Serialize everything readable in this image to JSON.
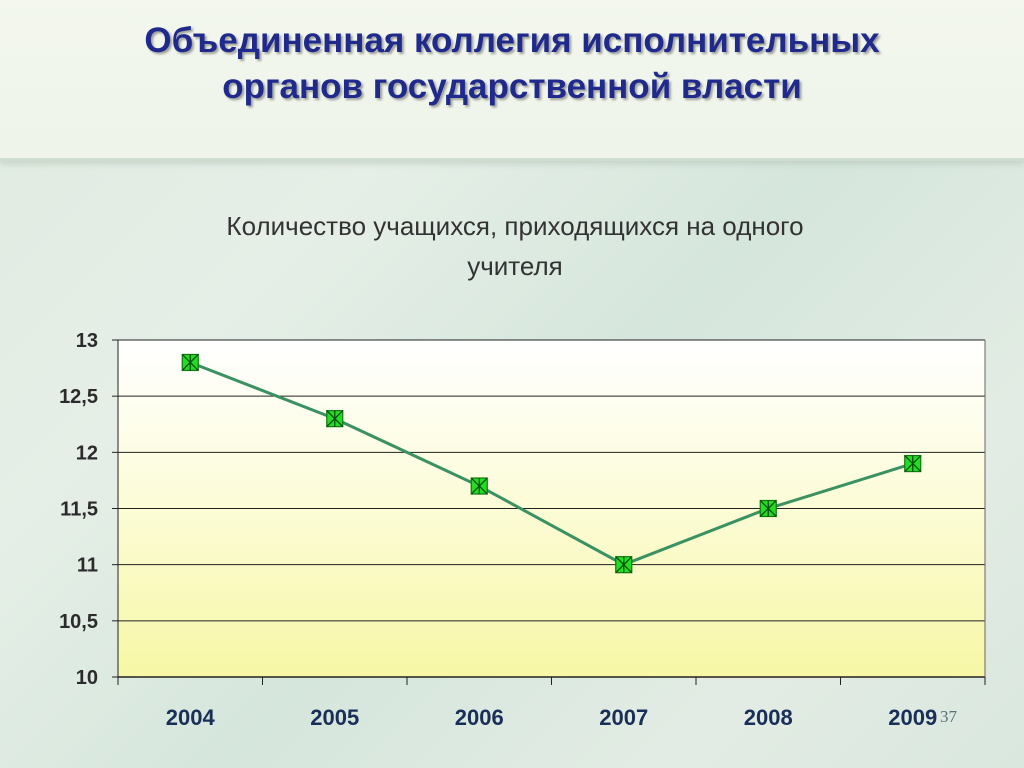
{
  "slide": {
    "title_line1": "Объединенная коллегия исполнительных",
    "title_line2": "органов государственной власти",
    "page_number": "37"
  },
  "chart_data": {
    "type": "line",
    "title_line1": "Количество учащихся, приходящихся на одного",
    "title_line2": "учителя",
    "categories": [
      "2004",
      "2005",
      "2006",
      "2007",
      "2008",
      "2009"
    ],
    "series": [
      {
        "values": [
          12.8,
          12.3,
          11.7,
          11.0,
          11.5,
          11.9
        ],
        "color": "#3a9161",
        "marker_color": "#22dd22"
      }
    ],
    "ylim": [
      10,
      13
    ],
    "yticks": [
      {
        "value": 10,
        "label": "10"
      },
      {
        "value": 10.5,
        "label": "10,5"
      },
      {
        "value": 11,
        "label": "11"
      },
      {
        "value": 11.5,
        "label": "11,5"
      },
      {
        "value": 12,
        "label": "12"
      },
      {
        "value": 12.5,
        "label": "12,5"
      },
      {
        "value": 13,
        "label": "13"
      }
    ],
    "grid": true,
    "legend": "none",
    "plot_background": "white-to-yellow gradient"
  }
}
